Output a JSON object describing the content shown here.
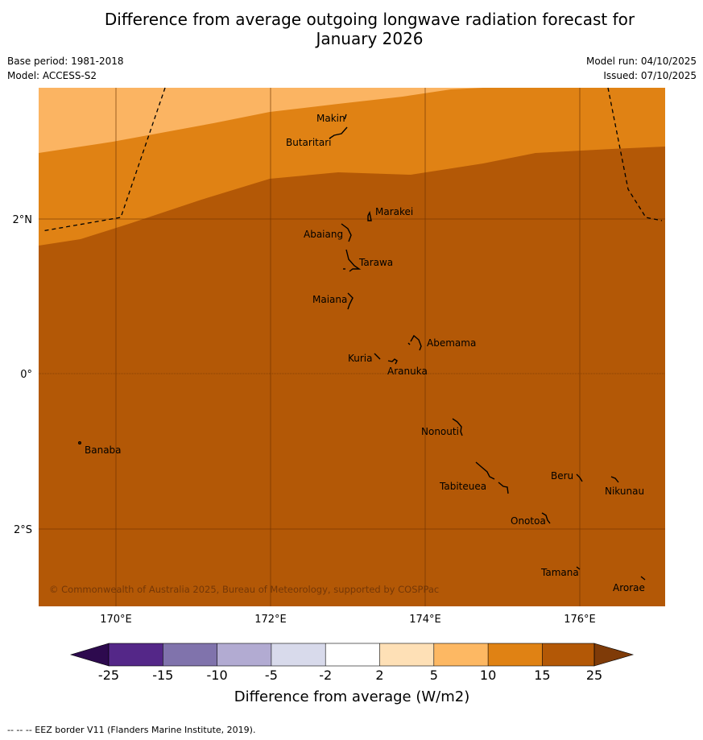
{
  "header": {
    "title_line1": "Difference from average outgoing longwave radiation forecast for",
    "title_line2": "January 2026",
    "base_period": "Base period: 1981-2018",
    "model": "Model: ACCESS-S2",
    "model_run": "Model run: 04/10/2025",
    "issued": "Issued: 07/10/2025"
  },
  "map": {
    "lat_labels": [
      "2°N",
      "0°",
      "2°S"
    ],
    "lon_labels": [
      "170°E",
      "172°E",
      "174°E",
      "176°E"
    ],
    "copyright": "© Commonwealth of Australia 2025, Bureau of Meteorology, supported by COSPPac",
    "islands": [
      "Makin",
      "Butaritari",
      "Marakei",
      "Abaiang",
      "Tarawa",
      "Maiana",
      "Abemama",
      "Kuria",
      "Aranuka",
      "Nonouti",
      "Banaba",
      "Beru",
      "Nikunau",
      "Tabiteuea",
      "Onotoa",
      "Tamana",
      "Arorae"
    ]
  },
  "colorbar": {
    "ticks": [
      "-25",
      "-15",
      "-10",
      "-5",
      "-2",
      "2",
      "5",
      "10",
      "15",
      "25"
    ],
    "label": "Difference from average (W/m2)",
    "colors": [
      "#4a2f8a",
      "#5a2d8c",
      "#8173b1",
      "#b3acd5",
      "#dbdbeb",
      "#ffffff",
      "#fee1b6",
      "#fbb462",
      "#e08214",
      "#b35806",
      "#7a3f0c"
    ]
  },
  "footer": {
    "text": "--  --  -- EEZ border V11 (Flanders Marine Institute, 2019)."
  }
}
